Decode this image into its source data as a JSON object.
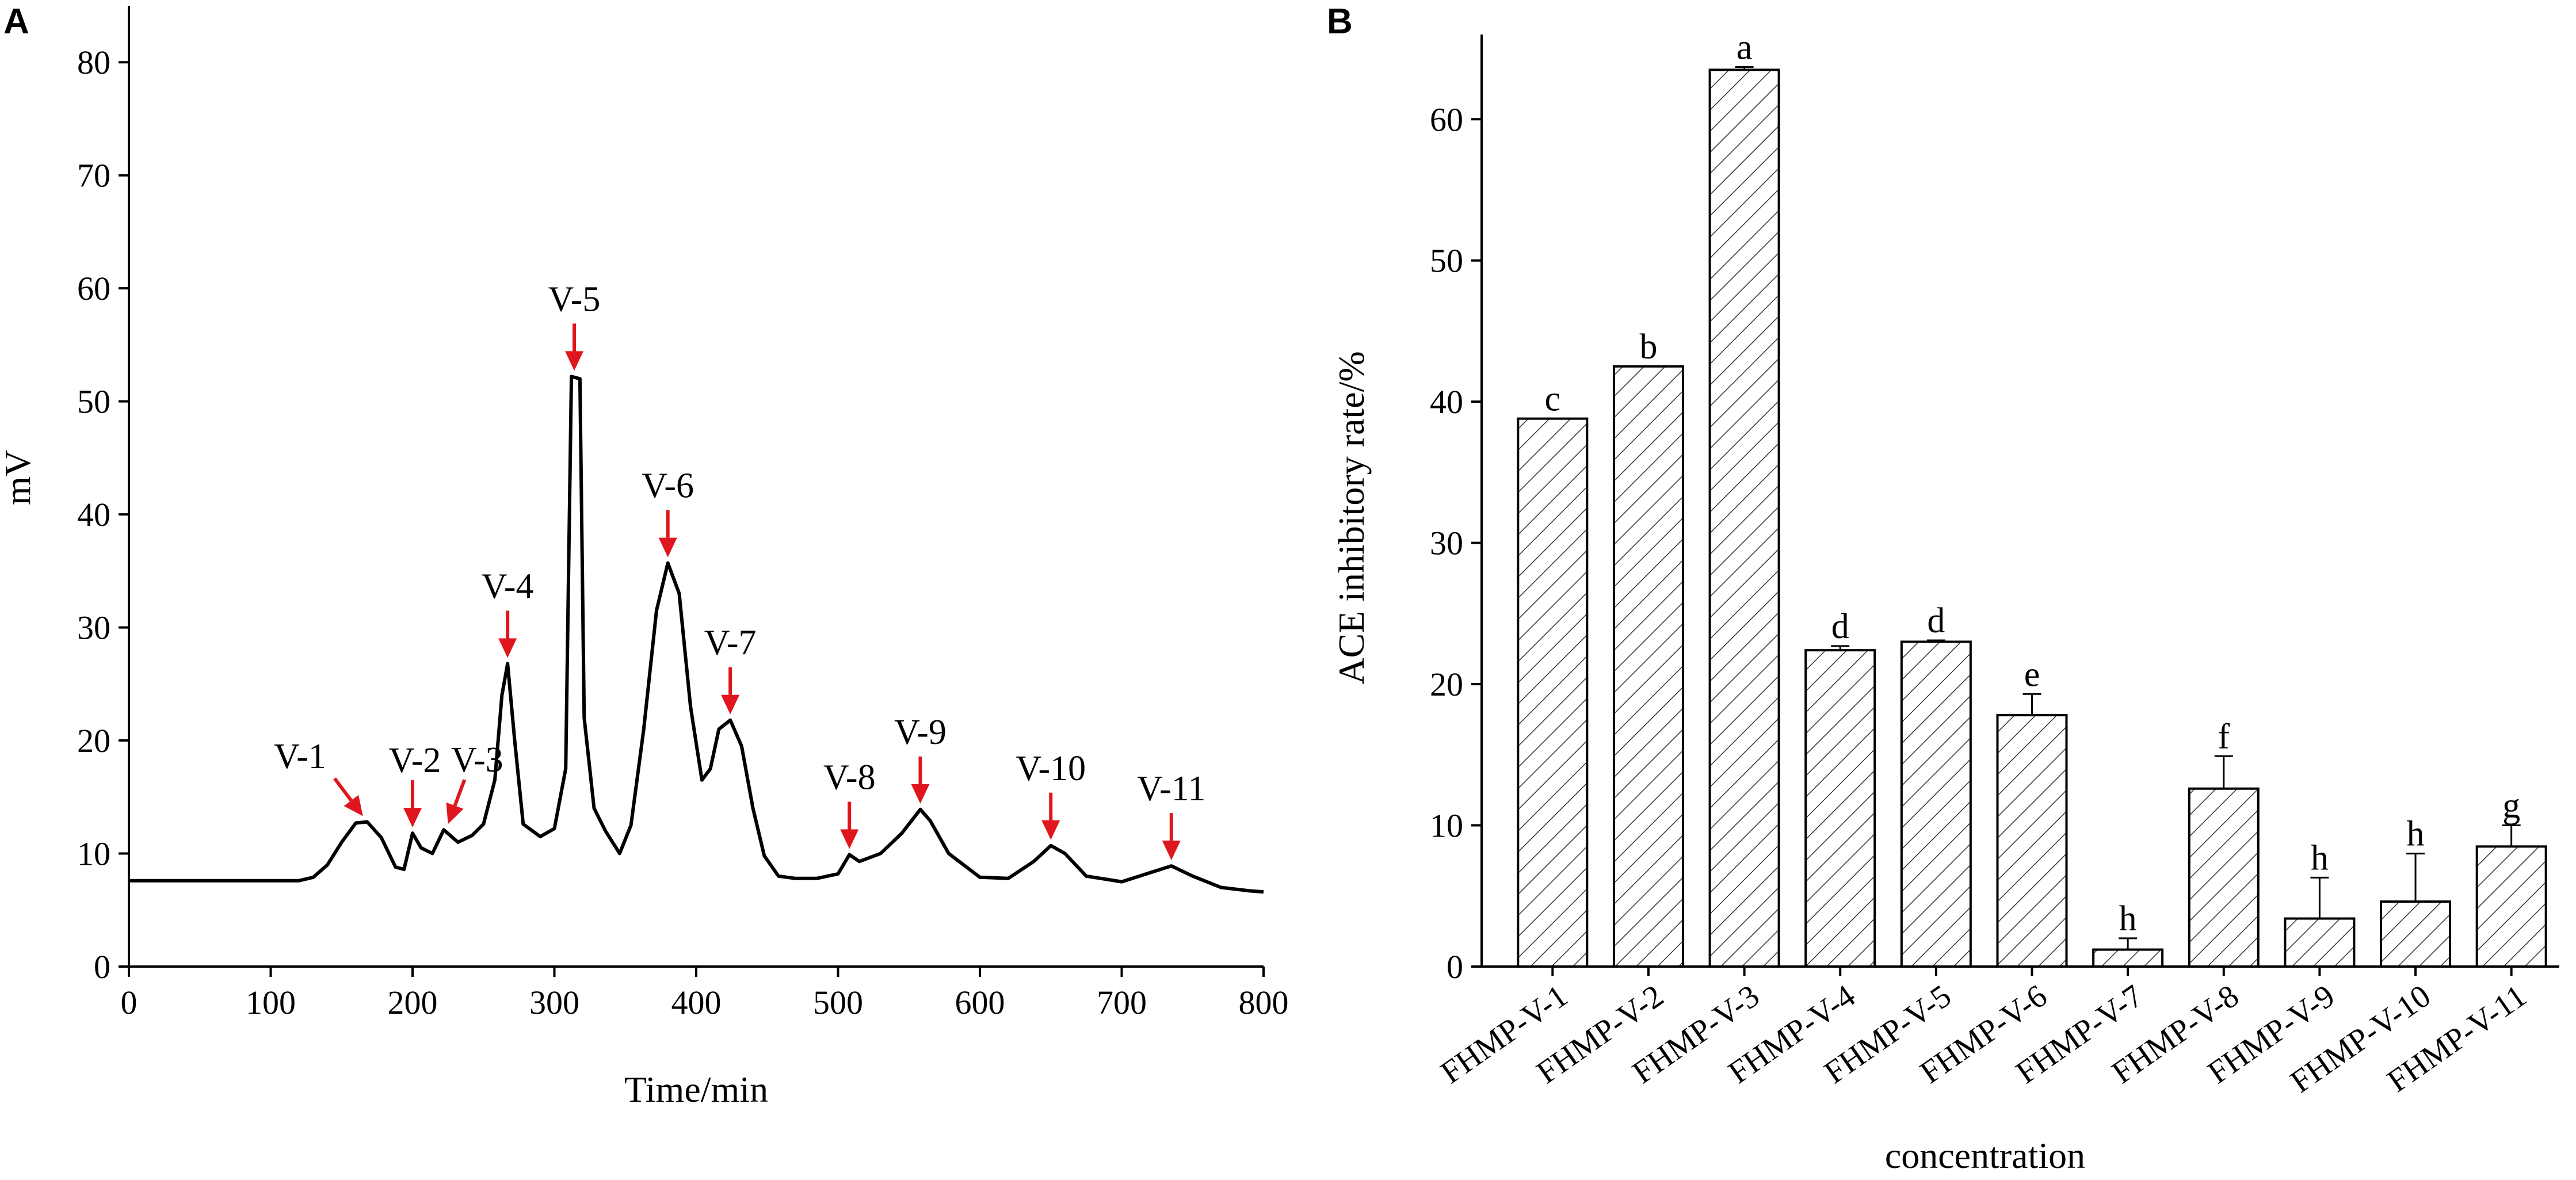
{
  "chart_data": [
    {
      "panel": "A",
      "type": "line",
      "xlabel": "Time/min",
      "ylabel": "mV",
      "xlim": [
        0,
        800
      ],
      "ylim": [
        0,
        85
      ],
      "x_ticks": [
        0,
        100,
        200,
        300,
        400,
        500,
        600,
        700,
        800
      ],
      "y_ticks": [
        0,
        10,
        20,
        30,
        40,
        50,
        60,
        70,
        80
      ],
      "series": [
        {
          "name": "chromatogram",
          "points": [
            [
              0,
              7.6
            ],
            [
              120,
              7.6
            ],
            [
              130,
              7.9
            ],
            [
              140,
              9.0
            ],
            [
              150,
              11.0
            ],
            [
              160,
              12.7
            ],
            [
              168,
              12.8
            ],
            [
              178,
              11.4
            ],
            [
              188,
              8.8
            ],
            [
              194,
              8.6
            ],
            [
              200,
              11.8
            ],
            [
              206,
              10.5
            ],
            [
              214,
              10.0
            ],
            [
              222,
              12.1
            ],
            [
              232,
              11.0
            ],
            [
              242,
              11.6
            ],
            [
              250,
              12.6
            ],
            [
              258,
              16.5
            ],
            [
              263,
              24.0
            ],
            [
              267,
              26.8
            ],
            [
              272,
              20.0
            ],
            [
              278,
              12.6
            ],
            [
              290,
              11.5
            ],
            [
              300,
              12.2
            ],
            [
              308,
              17.5
            ],
            [
              312,
              52.2
            ],
            [
              318,
              52.0
            ],
            [
              321,
              22.0
            ],
            [
              328,
              14.0
            ],
            [
              336,
              12.0
            ],
            [
              346,
              10.0
            ],
            [
              354,
              12.5
            ],
            [
              363,
              21.0
            ],
            [
              372,
              31.5
            ],
            [
              380,
              35.7
            ],
            [
              388,
              33.0
            ],
            [
              396,
              23.0
            ],
            [
              404,
              16.5
            ],
            [
              410,
              17.5
            ],
            [
              416,
              21.0
            ],
            [
              424,
              21.8
            ],
            [
              432,
              19.5
            ],
            [
              440,
              14.0
            ],
            [
              448,
              9.8
            ],
            [
              458,
              8.0
            ],
            [
              470,
              7.8
            ],
            [
              485,
              7.8
            ],
            [
              500,
              8.2
            ],
            [
              508,
              9.9
            ],
            [
              515,
              9.3
            ],
            [
              530,
              10.0
            ],
            [
              545,
              11.8
            ],
            [
              558,
              13.9
            ],
            [
              565,
              12.9
            ],
            [
              578,
              10.0
            ],
            [
              600,
              7.9
            ],
            [
              620,
              7.8
            ],
            [
              638,
              9.3
            ],
            [
              650,
              10.7
            ],
            [
              660,
              10.0
            ],
            [
              675,
              8.0
            ],
            [
              700,
              7.5
            ],
            [
              720,
              8.3
            ],
            [
              735,
              8.9
            ],
            [
              750,
              8.0
            ],
            [
              770,
              7.0
            ],
            [
              790,
              6.7
            ],
            [
              800,
              6.6
            ]
          ]
        }
      ],
      "annotations": [
        {
          "label": "V-1",
          "x": 165,
          "y": 12.8
        },
        {
          "label": "V-2",
          "x": 200,
          "y": 11.8
        },
        {
          "label": "V-3",
          "x": 225,
          "y": 12.1
        },
        {
          "label": "V-4",
          "x": 267,
          "y": 26.8
        },
        {
          "label": "V-5",
          "x": 314,
          "y": 52.2
        },
        {
          "label": "V-6",
          "x": 380,
          "y": 35.7
        },
        {
          "label": "V-7",
          "x": 424,
          "y": 21.8
        },
        {
          "label": "V-8",
          "x": 508,
          "y": 9.9
        },
        {
          "label": "V-9",
          "x": 558,
          "y": 13.9
        },
        {
          "label": "V-10",
          "x": 650,
          "y": 10.7
        },
        {
          "label": "V-11",
          "x": 735,
          "y": 8.9
        }
      ]
    },
    {
      "panel": "B",
      "type": "bar",
      "xlabel": "concentration",
      "ylabel": "ACE inhibitory rate/%",
      "ylim": [
        0,
        66
      ],
      "y_ticks": [
        0,
        10,
        20,
        30,
        40,
        50,
        60
      ],
      "categories": [
        "FHMP-V-1",
        "FHMP-V-2",
        "FHMP-V-3",
        "FHMP-V-4",
        "FHMP-V-5",
        "FHMP-V-6",
        "FHMP-V-7",
        "FHMP-V-8",
        "FHMP-V-9",
        "FHMP-V-10",
        "FHMP-V-11"
      ],
      "values": [
        38.8,
        42.5,
        63.5,
        22.4,
        23.0,
        17.8,
        1.2,
        12.6,
        3.4,
        4.6,
        8.5
      ],
      "errors": [
        0.0,
        0.0,
        0.2,
        0.3,
        0.1,
        1.5,
        0.8,
        2.3,
        2.9,
        3.4,
        1.5
      ],
      "letters": [
        "c",
        "b",
        "a",
        "d",
        "d",
        "e",
        "h",
        "f",
        "h",
        "h",
        "g"
      ]
    }
  ],
  "panels": {
    "a_label": "A",
    "b_label": "B"
  },
  "colors": {
    "line": "#000000",
    "arrow": "#e0161e",
    "bar_fill": "#ffffff",
    "hatch": "#333333"
  }
}
